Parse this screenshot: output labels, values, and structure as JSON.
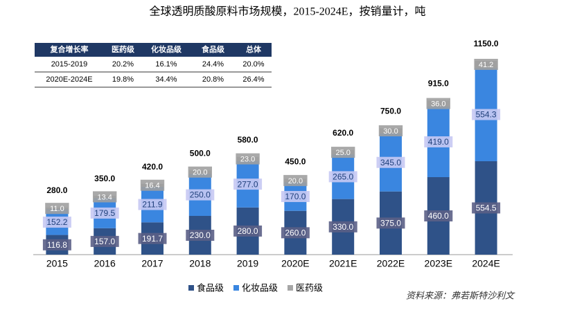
{
  "chart_data": {
    "type": "stacked-bar",
    "title": "全球透明质酸原料市场规模，2015-2024E，按销量计，吨",
    "categories": [
      "2015",
      "2016",
      "2017",
      "2018",
      "2019",
      "2020E",
      "2021E",
      "2022E",
      "2023E",
      "2024E"
    ],
    "series": [
      {
        "name": "食品级",
        "color": "#2f5288",
        "values": [
          116.8,
          157.0,
          191.7,
          230.0,
          280.0,
          260.0,
          330.0,
          375.0,
          460.0,
          554.5
        ],
        "value_labels": [
          "116.8",
          "157.0",
          "191.7",
          "230.0",
          "280.0",
          "260.0",
          "330.0",
          "375.0",
          "460.0",
          "554.5"
        ]
      },
      {
        "name": "化妆品级",
        "color": "#3a86e0",
        "values": [
          152.2,
          179.5,
          211.9,
          250.0,
          277.0,
          170.0,
          265.0,
          345.0,
          419.0,
          554.3
        ],
        "value_labels": [
          "152.2",
          "179.5",
          "211.9",
          "250.0",
          "277.0",
          "170.0",
          "265.0",
          "345.0",
          "419.0",
          "554.3"
        ]
      },
      {
        "name": "医药级",
        "color": "#a6a6a6",
        "values": [
          11.0,
          13.4,
          16.4,
          20.0,
          23.0,
          20.0,
          25.0,
          30.0,
          36.0,
          41.2
        ],
        "value_labels": [
          "11.0",
          "13.4",
          "16.4",
          "20.0",
          "23.0",
          "20.0",
          "25.0",
          "30.0",
          "36.0",
          "41.2"
        ]
      }
    ],
    "totals": [
      280.0,
      350.0,
      420.0,
      500.0,
      580.0,
      450.0,
      620.0,
      750.0,
      915.0,
      1150.0
    ],
    "total_labels": [
      "280.0",
      "350.0",
      "420.0",
      "500.0",
      "580.0",
      "450.0",
      "620.0",
      "750.0",
      "915.0",
      "1150.0"
    ],
    "legend": "bottom",
    "source": "资料来源：弗若斯特沙利文"
  },
  "table": {
    "header": [
      "复合增长率",
      "医药级",
      "化妆品级",
      "食品级",
      "总体"
    ],
    "rows": [
      [
        "2015-2019",
        "20.2%",
        "16.1%",
        "24.4%",
        "20.0%"
      ],
      [
        "2020E-2024E",
        "19.8%",
        "34.4%",
        "20.8%",
        "26.4%"
      ]
    ]
  }
}
